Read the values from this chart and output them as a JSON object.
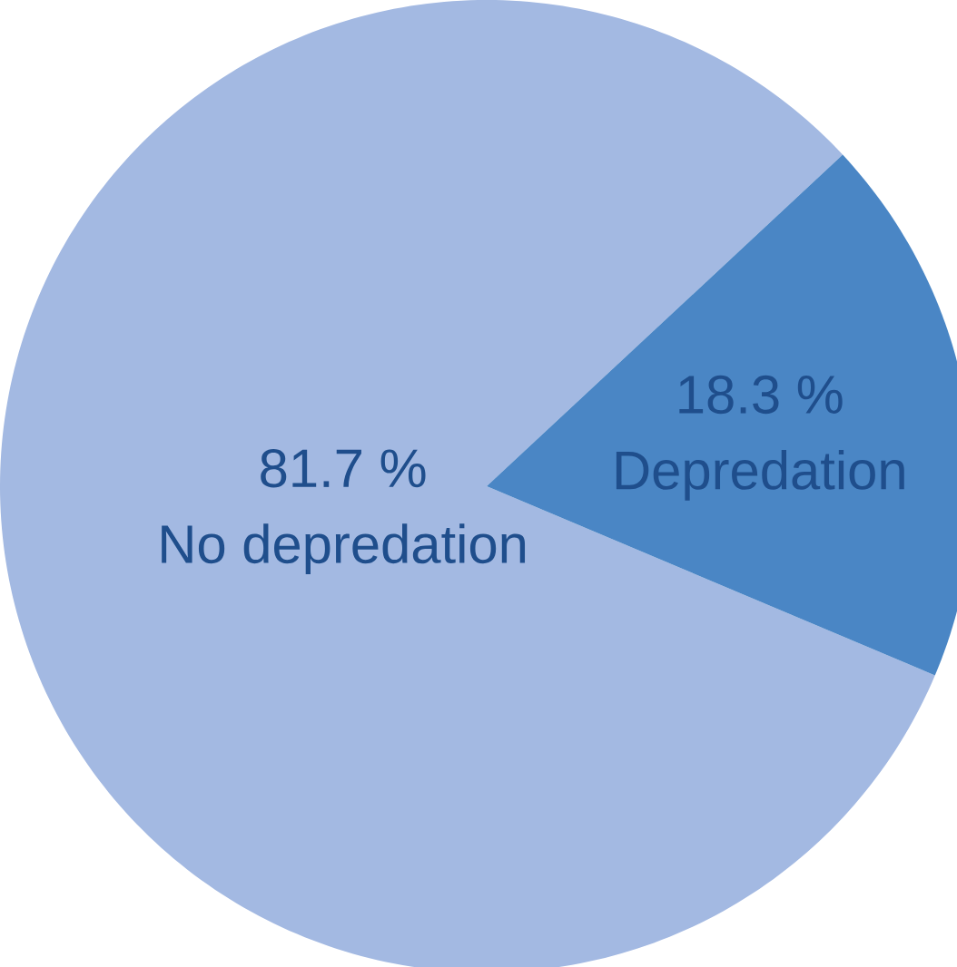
{
  "chart_data": {
    "type": "pie",
    "categories": [
      "No depredation",
      "Depredation"
    ],
    "values": [
      81.7,
      18.3
    ],
    "colors": [
      "#a3b9e2",
      "#4a86c5"
    ],
    "value_labels": [
      "81.7 %",
      "18.3 %"
    ]
  }
}
